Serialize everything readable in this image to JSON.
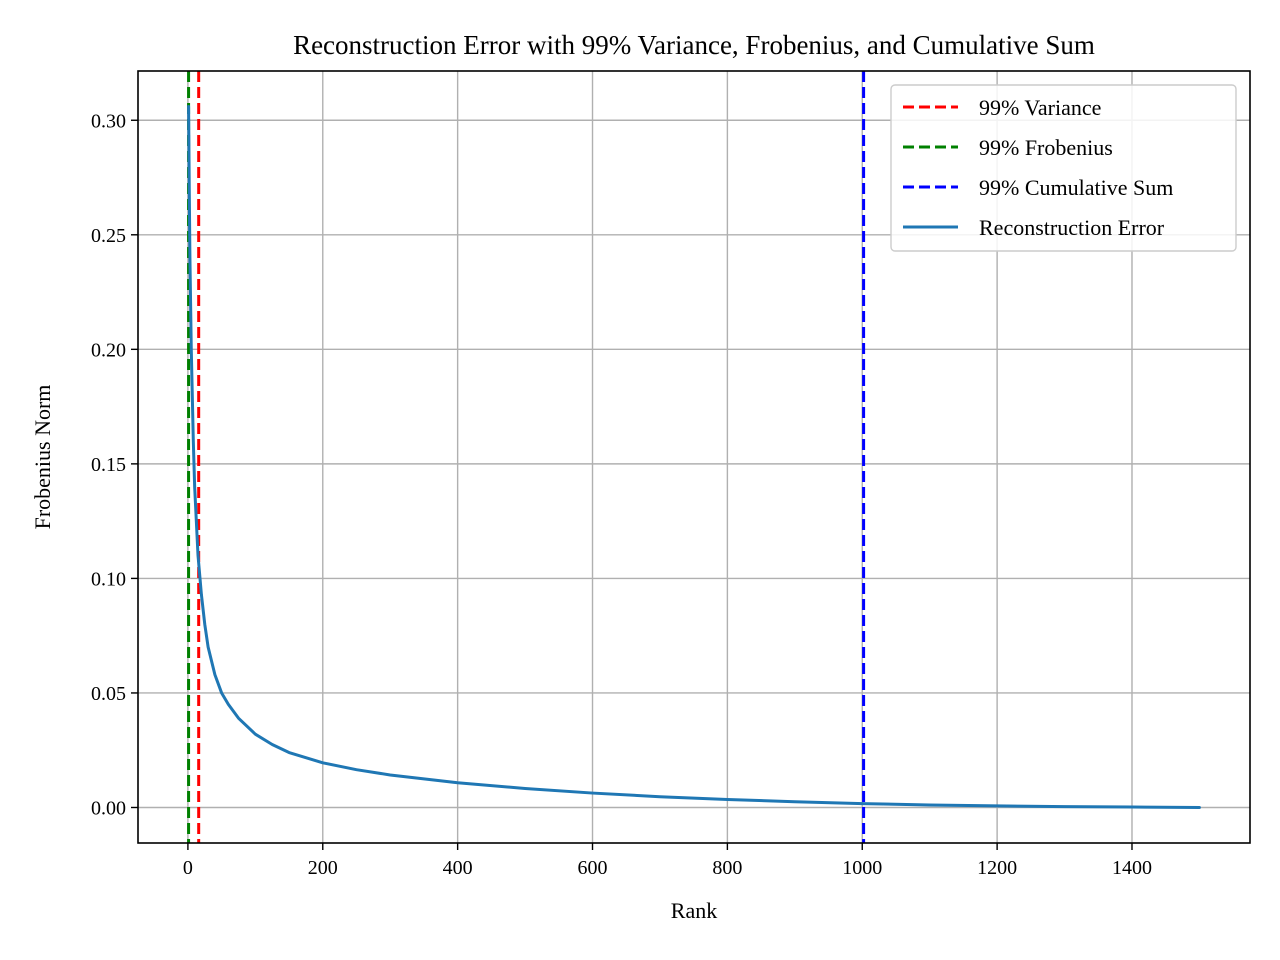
{
  "chart_data": {
    "type": "line",
    "title": "Reconstruction Error with 99% Variance, Frobenius, and Cumulative Sum",
    "xlabel": "Rank",
    "ylabel": "Frobenius Norm",
    "xlim": [
      -74,
      1575
    ],
    "ylim": [
      -0.0155,
      0.3215
    ],
    "xticks": [
      0,
      200,
      400,
      600,
      800,
      1000,
      1200,
      1400
    ],
    "xtick_labels": [
      "0",
      "200",
      "400",
      "600",
      "800",
      "1000",
      "1200",
      "1400"
    ],
    "yticks": [
      0.0,
      0.05,
      0.1,
      0.15,
      0.2,
      0.25,
      0.3
    ],
    "ytick_labels": [
      "0.00",
      "0.05",
      "0.10",
      "0.15",
      "0.20",
      "0.25",
      "0.30"
    ],
    "grid": true,
    "legend_position": "top-right",
    "vlines": [
      {
        "name": "99% Variance",
        "x": 16,
        "color": "#ff0000",
        "style": "dashed"
      },
      {
        "name": "99% Frobenius",
        "x": 1,
        "color": "#008000",
        "style": "dashed"
      },
      {
        "name": "99% Cumulative Sum",
        "x": 1002,
        "color": "#0000ff",
        "style": "dashed"
      }
    ],
    "series": [
      {
        "name": "Reconstruction Error",
        "color": "#1f77b4",
        "style": "solid",
        "x": [
          1,
          2,
          3,
          5,
          8,
          10,
          15,
          20,
          25,
          30,
          40,
          50,
          60,
          75,
          100,
          125,
          150,
          200,
          250,
          300,
          400,
          500,
          600,
          700,
          800,
          900,
          1000,
          1100,
          1200,
          1300,
          1400,
          1500
        ],
        "values": [
          0.306,
          0.27,
          0.24,
          0.2,
          0.16,
          0.14,
          0.11,
          0.093,
          0.08,
          0.07,
          0.058,
          0.05,
          0.045,
          0.039,
          0.032,
          0.0275,
          0.024,
          0.0195,
          0.0165,
          0.0142,
          0.0108,
          0.0083,
          0.0063,
          0.0047,
          0.0035,
          0.0025,
          0.0017,
          0.0011,
          0.0007,
          0.0004,
          0.0002,
          0.0
        ]
      }
    ]
  }
}
